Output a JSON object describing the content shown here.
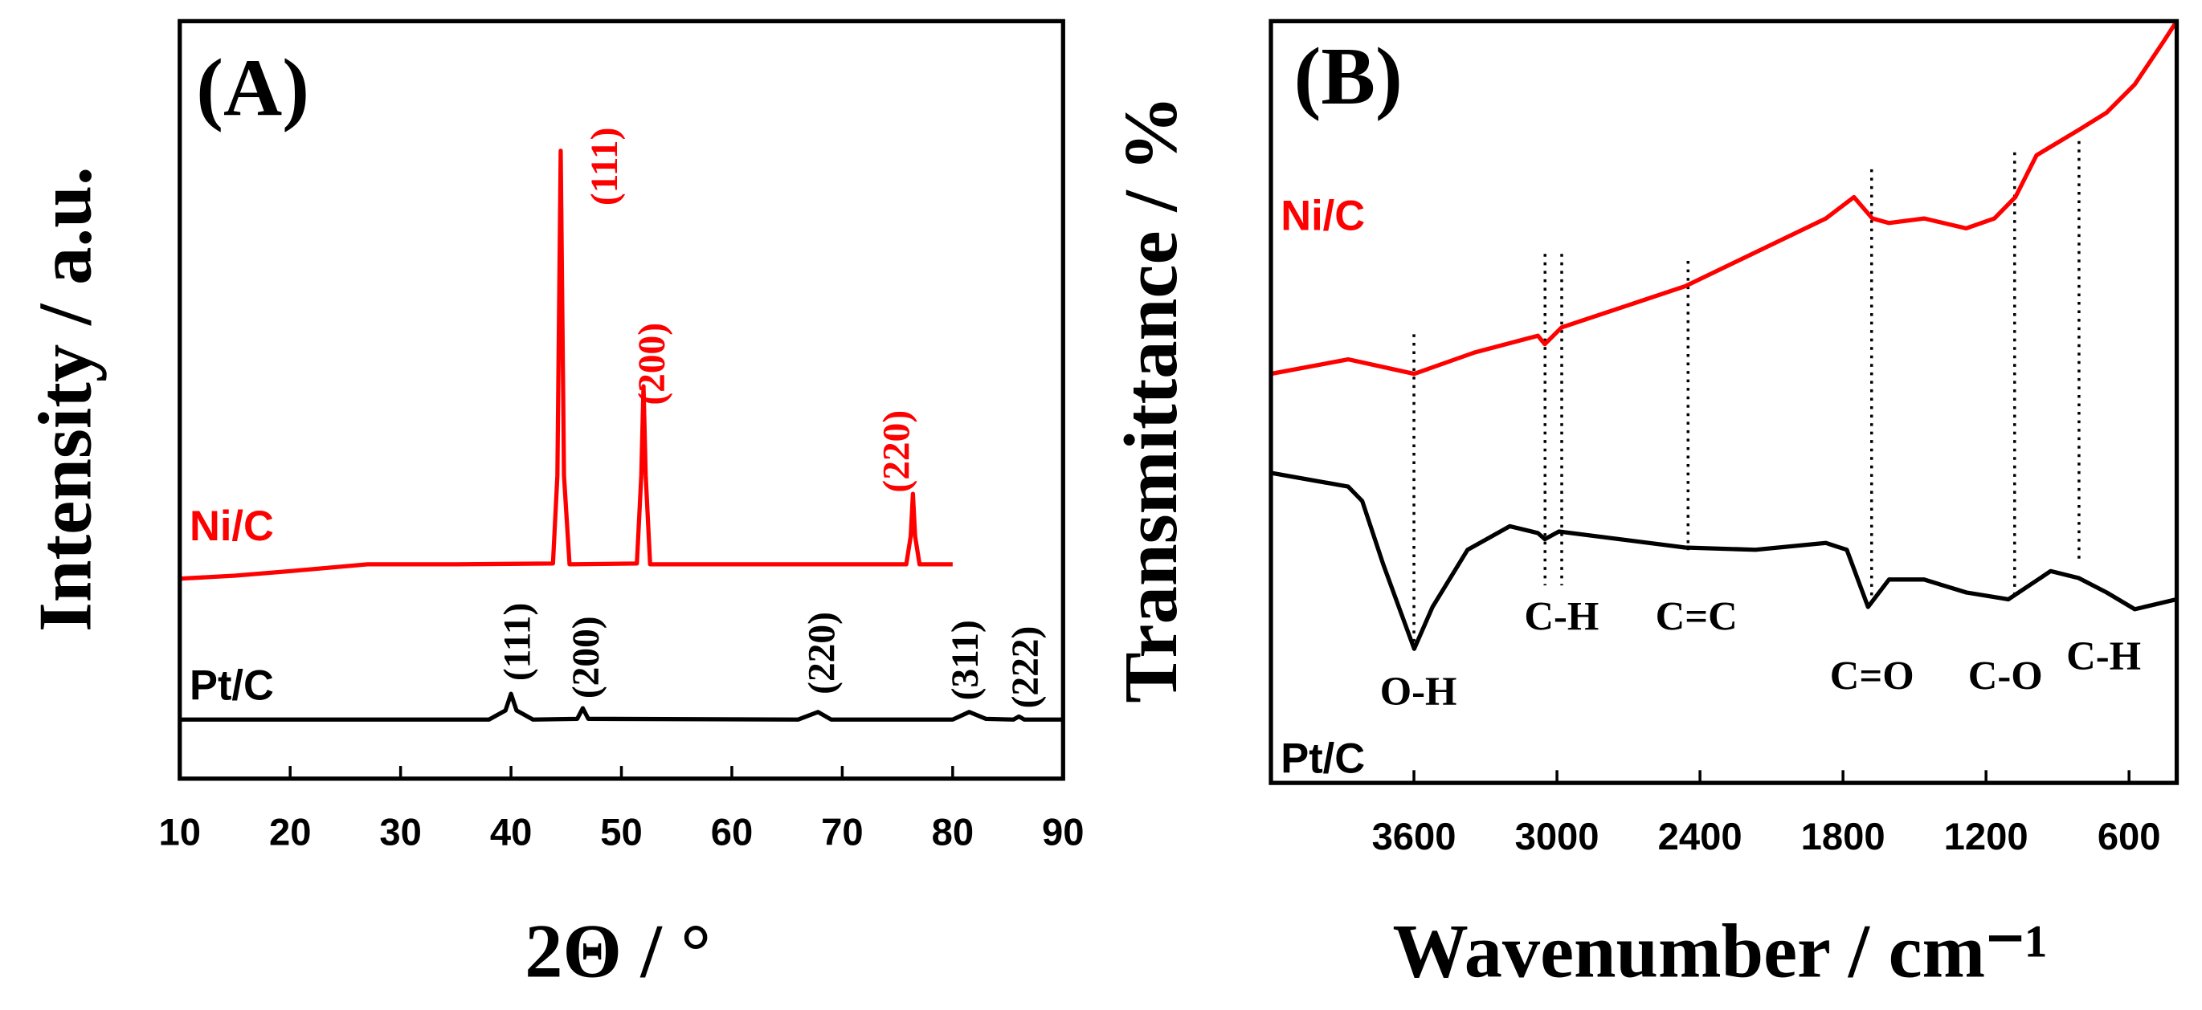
{
  "chart_data": [
    {
      "type": "line",
      "panel_label": "(A)",
      "x_label": "2Θ / °",
      "y_label": "Intensity / a.u.",
      "xlim": [
        10,
        90
      ],
      "xticks": [
        10,
        20,
        30,
        40,
        50,
        60,
        70,
        80,
        90
      ],
      "ylim": [
        0,
        100
      ],
      "series": [
        {
          "name": "Ni/C",
          "color": "#ff0000",
          "x": [
            10,
            15,
            20,
            27,
            35,
            43.8,
            44.2,
            44.5,
            44.8,
            45.3,
            51.4,
            51.8,
            52.0,
            52.2,
            52.6,
            75.8,
            76.2,
            76.4,
            76.6,
            77,
            80
          ],
          "values": [
            26.4,
            26.8,
            27.4,
            28.3,
            28.3,
            28.4,
            40,
            82.9,
            40,
            28.3,
            28.4,
            40,
            51.8,
            40,
            28.3,
            28.3,
            32,
            37.6,
            32,
            28.3,
            28.3
          ]
        },
        {
          "name": "Pt/C",
          "color": "#000000",
          "x": [
            10,
            38,
            39.5,
            40,
            40.5,
            42,
            46,
            46.5,
            47,
            66,
            67.8,
            69,
            80,
            81.5,
            83,
            85.5,
            86,
            86.5,
            90
          ],
          "values": [
            7.8,
            7.8,
            9,
            11.2,
            9,
            7.8,
            7.9,
            9.3,
            7.9,
            7.8,
            8.8,
            7.8,
            7.8,
            8.8,
            7.9,
            7.8,
            8.2,
            7.8,
            7.8
          ]
        }
      ],
      "annotations": [
        {
          "text": "(111)",
          "color": "#ff0000"
        },
        {
          "text": "(200)",
          "color": "#ff0000"
        },
        {
          "text": "(220)",
          "color": "#ff0000"
        },
        {
          "text": "(111)",
          "color": "#000000"
        },
        {
          "text": "(200)",
          "color": "#000000"
        },
        {
          "text": "(220)",
          "color": "#000000"
        },
        {
          "text": "(311)",
          "color": "#000000"
        },
        {
          "text": "(222)",
          "color": "#000000"
        }
      ]
    },
    {
      "type": "line",
      "panel_label": "(B)",
      "x_label": "Wavenumber / cm⁻¹",
      "y_label": "Transmittance / %",
      "xlim": [
        4200,
        400
      ],
      "xticks": [
        3600,
        3000,
        2400,
        1800,
        1200,
        600
      ],
      "ylim": [
        0,
        100
      ],
      "series": [
        {
          "name": "Ni/C",
          "color": "#ff0000",
          "x": [
            4200,
            3876,
            3599,
            3346,
            3080,
            3051,
            2980,
            2462,
            1872,
            1754,
            1677,
            1607,
            1460,
            1283,
            1165,
            1077,
            988,
            812,
            694,
            576,
            458,
            400
          ],
          "values": [
            53.7,
            55.6,
            53.7,
            56.5,
            58.7,
            57.6,
            59.8,
            65.2,
            74.1,
            76.9,
            74.1,
            73.5,
            74.1,
            72.8,
            74.1,
            76.9,
            82.4,
            85.7,
            88.0,
            91.7,
            97.2,
            100
          ]
        },
        {
          "name": "Pt/C",
          "color": "#000000",
          "x": [
            4200,
            3876,
            3817,
            3729,
            3599,
            3522,
            3375,
            3198,
            3080,
            3051,
            2992,
            2462,
            2167,
            1872,
            1784,
            1695,
            1607,
            1460,
            1283,
            1106,
            929,
            812,
            694,
            576,
            400
          ],
          "values": [
            40.7,
            38.9,
            37.0,
            28.7,
            17.6,
            23.1,
            30.6,
            33.7,
            32.8,
            32.0,
            33.0,
            30.9,
            30.6,
            31.5,
            30.6,
            23.1,
            26.7,
            26.7,
            25.0,
            24.1,
            27.8,
            26.9,
            25.0,
            22.8,
            24.1
          ]
        }
      ],
      "reference_lines": [
        3600,
        3050,
        2980,
        2450,
        1680,
        1080,
        810
      ],
      "annotations": [
        {
          "text": "O-H"
        },
        {
          "text": "C-H"
        },
        {
          "text": "C=C"
        },
        {
          "text": "C=O"
        },
        {
          "text": "C-O"
        },
        {
          "text": "C-H"
        }
      ]
    }
  ]
}
